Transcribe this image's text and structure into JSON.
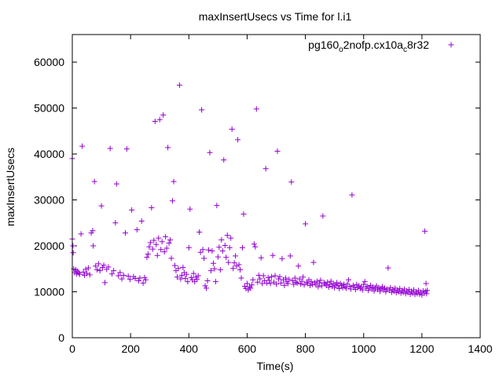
{
  "chart_data": {
    "type": "scatter",
    "title": "maxInsertUsecs vs Time for l.i1",
    "xlabel": "Time(s)",
    "ylabel": "maxInsertUsecs",
    "xlim": [
      0,
      1400
    ],
    "ylim": [
      0,
      66000
    ],
    "x_ticks": [
      0,
      200,
      400,
      600,
      800,
      1000,
      1200,
      1400
    ],
    "y_ticks": [
      0,
      10000,
      20000,
      30000,
      40000,
      50000,
      60000
    ],
    "grid": false,
    "legend_position": "top-right",
    "marker": "plus",
    "series": [
      {
        "name": "pg160_o2nofp.cx10a_c8r32",
        "legend_parts": [
          {
            "text": "pg160",
            "shift": "none"
          },
          {
            "text": "o",
            "shift": "sub"
          },
          {
            "text": "2nofp.cx10a",
            "shift": "none"
          },
          {
            "text": "c",
            "shift": "sub"
          },
          {
            "text": "8r32",
            "shift": "none"
          }
        ],
        "color": "#9400d3",
        "points": [
          [
            0,
            21500
          ],
          [
            0,
            39000
          ],
          [
            2,
            20000
          ],
          [
            3,
            18500
          ],
          [
            5,
            15000
          ],
          [
            8,
            14200
          ],
          [
            12,
            14800
          ],
          [
            15,
            13900
          ],
          [
            18,
            14500
          ],
          [
            22,
            14100
          ],
          [
            25,
            13800
          ],
          [
            30,
            22600
          ],
          [
            34,
            41700
          ],
          [
            38,
            14300
          ],
          [
            42,
            13600
          ],
          [
            46,
            14900
          ],
          [
            50,
            14000
          ],
          [
            55,
            15200
          ],
          [
            60,
            13700
          ],
          [
            65,
            22800
          ],
          [
            70,
            23300
          ],
          [
            72,
            20000
          ],
          [
            76,
            34000
          ],
          [
            80,
            15600
          ],
          [
            85,
            14800
          ],
          [
            90,
            16100
          ],
          [
            95,
            14600
          ],
          [
            100,
            28700
          ],
          [
            104,
            15300
          ],
          [
            108,
            15800
          ],
          [
            112,
            12000
          ],
          [
            118,
            14900
          ],
          [
            124,
            15400
          ],
          [
            130,
            41200
          ],
          [
            136,
            13900
          ],
          [
            142,
            14600
          ],
          [
            148,
            25000
          ],
          [
            152,
            33500
          ],
          [
            158,
            13500
          ],
          [
            164,
            14200
          ],
          [
            170,
            12800
          ],
          [
            176,
            13600
          ],
          [
            182,
            22800
          ],
          [
            187,
            41100
          ],
          [
            192,
            13400
          ],
          [
            198,
            12700
          ],
          [
            204,
            27800
          ],
          [
            210,
            13300
          ],
          [
            216,
            12900
          ],
          [
            222,
            23500
          ],
          [
            228,
            12400
          ],
          [
            232,
            13000
          ],
          [
            238,
            25400
          ],
          [
            243,
            11900
          ],
          [
            248,
            13100
          ],
          [
            252,
            12600
          ],
          [
            256,
            17500
          ],
          [
            260,
            18200
          ],
          [
            264,
            19800
          ],
          [
            268,
            20700
          ],
          [
            272,
            28300
          ],
          [
            276,
            19300
          ],
          [
            280,
            21200
          ],
          [
            284,
            47100
          ],
          [
            288,
            20300
          ],
          [
            292,
            17900
          ],
          [
            296,
            21700
          ],
          [
            300,
            47500
          ],
          [
            304,
            19200
          ],
          [
            308,
            20900
          ],
          [
            312,
            48500
          ],
          [
            316,
            18700
          ],
          [
            320,
            22000
          ],
          [
            324,
            19500
          ],
          [
            328,
            41400
          ],
          [
            332,
            20600
          ],
          [
            336,
            21300
          ],
          [
            340,
            17300
          ],
          [
            344,
            29800
          ],
          [
            348,
            34000
          ],
          [
            352,
            15700
          ],
          [
            356,
            14600
          ],
          [
            360,
            13200
          ],
          [
            364,
            15100
          ],
          [
            368,
            55000
          ],
          [
            372,
            12800
          ],
          [
            376,
            13600
          ],
          [
            380,
            15300
          ],
          [
            384,
            14200
          ],
          [
            388,
            12900
          ],
          [
            392,
            13800
          ],
          [
            396,
            12200
          ],
          [
            400,
            19600
          ],
          [
            404,
            28000
          ],
          [
            408,
            13100
          ],
          [
            412,
            12600
          ],
          [
            416,
            14000
          ],
          [
            420,
            12200
          ],
          [
            424,
            13200
          ],
          [
            428,
            12700
          ],
          [
            432,
            13500
          ],
          [
            436,
            23000
          ],
          [
            440,
            18600
          ],
          [
            444,
            49600
          ],
          [
            448,
            19200
          ],
          [
            452,
            17300
          ],
          [
            456,
            11300
          ],
          [
            460,
            10800
          ],
          [
            464,
            12400
          ],
          [
            468,
            19100
          ],
          [
            472,
            40300
          ],
          [
            476,
            14600
          ],
          [
            480,
            18900
          ],
          [
            484,
            16200
          ],
          [
            488,
            15000
          ],
          [
            492,
            12200
          ],
          [
            496,
            28800
          ],
          [
            500,
            17600
          ],
          [
            504,
            19700
          ],
          [
            508,
            14800
          ],
          [
            512,
            21300
          ],
          [
            516,
            18900
          ],
          [
            520,
            38700
          ],
          [
            524,
            20100
          ],
          [
            528,
            17500
          ],
          [
            532,
            22300
          ],
          [
            536,
            16400
          ],
          [
            540,
            19600
          ],
          [
            544,
            21700
          ],
          [
            548,
            45400
          ],
          [
            552,
            15100
          ],
          [
            556,
            16300
          ],
          [
            560,
            17800
          ],
          [
            564,
            15600
          ],
          [
            568,
            43100
          ],
          [
            572,
            15900
          ],
          [
            576,
            14800
          ],
          [
            580,
            13000
          ],
          [
            584,
            19600
          ],
          [
            588,
            26900
          ],
          [
            592,
            11200
          ],
          [
            596,
            10700
          ],
          [
            600,
            11800
          ],
          [
            604,
            10400
          ],
          [
            608,
            11100
          ],
          [
            612,
            10800
          ],
          [
            616,
            11500
          ],
          [
            620,
            12600
          ],
          [
            624,
            20400
          ],
          [
            628,
            19800
          ],
          [
            632,
            49800
          ],
          [
            636,
            12100
          ],
          [
            640,
            13600
          ],
          [
            644,
            12800
          ],
          [
            648,
            17400
          ],
          [
            652,
            11800
          ],
          [
            656,
            13500
          ],
          [
            660,
            12400
          ],
          [
            664,
            36800
          ],
          [
            668,
            11900
          ],
          [
            672,
            13100
          ],
          [
            676,
            12500
          ],
          [
            680,
            11800
          ],
          [
            684,
            13300
          ],
          [
            688,
            17900
          ],
          [
            692,
            12100
          ],
          [
            696,
            13500
          ],
          [
            700,
            11700
          ],
          [
            704,
            40600
          ],
          [
            708,
            12800
          ],
          [
            712,
            13300
          ],
          [
            716,
            11900
          ],
          [
            720,
            17200
          ],
          [
            724,
            12600
          ],
          [
            728,
            11400
          ],
          [
            732,
            13000
          ],
          [
            736,
            12200
          ],
          [
            740,
            11800
          ],
          [
            744,
            12700
          ],
          [
            748,
            17800
          ],
          [
            752,
            33900
          ],
          [
            756,
            12400
          ],
          [
            760,
            11600
          ],
          [
            764,
            13000
          ],
          [
            768,
            12100
          ],
          [
            772,
            11900
          ],
          [
            776,
            15600
          ],
          [
            780,
            12800
          ],
          [
            784,
            11700
          ],
          [
            788,
            12300
          ],
          [
            792,
            13200
          ],
          [
            796,
            11500
          ],
          [
            800,
            24800
          ],
          [
            804,
            12100
          ],
          [
            808,
            11800
          ],
          [
            812,
            12600
          ],
          [
            816,
            11400
          ],
          [
            820,
            12200
          ],
          [
            824,
            11600
          ],
          [
            828,
            16400
          ],
          [
            832,
            12000
          ],
          [
            836,
            11500
          ],
          [
            840,
            12300
          ],
          [
            844,
            11100
          ],
          [
            848,
            11900
          ],
          [
            852,
            12500
          ],
          [
            856,
            11300
          ],
          [
            860,
            26500
          ],
          [
            864,
            12000
          ],
          [
            868,
            11700
          ],
          [
            872,
            11400
          ],
          [
            876,
            12100
          ],
          [
            880,
            11000
          ],
          [
            884,
            11600
          ],
          [
            888,
            12300
          ],
          [
            892,
            11200
          ],
          [
            896,
            11800
          ],
          [
            900,
            10900
          ],
          [
            904,
            11500
          ],
          [
            908,
            12000
          ],
          [
            912,
            11300
          ],
          [
            916,
            10700
          ],
          [
            920,
            11800
          ],
          [
            924,
            11400
          ],
          [
            928,
            10900
          ],
          [
            932,
            11600
          ],
          [
            936,
            11100
          ],
          [
            940,
            10800
          ],
          [
            944,
            11700
          ],
          [
            948,
            12600
          ],
          [
            952,
            11200
          ],
          [
            956,
            10600
          ],
          [
            960,
            31100
          ],
          [
            964,
            11400
          ],
          [
            968,
            11000
          ],
          [
            972,
            10500
          ],
          [
            976,
            11600
          ],
          [
            980,
            10900
          ],
          [
            984,
            11300
          ],
          [
            988,
            10700
          ],
          [
            992,
            11100
          ],
          [
            996,
            10400
          ],
          [
            1000,
            11600
          ],
          [
            1004,
            12200
          ],
          [
            1008,
            10800
          ],
          [
            1012,
            11200
          ],
          [
            1016,
            10300
          ],
          [
            1020,
            10900
          ],
          [
            1024,
            11400
          ],
          [
            1028,
            10600
          ],
          [
            1032,
            11000
          ],
          [
            1036,
            10200
          ],
          [
            1040,
            10800
          ],
          [
            1044,
            11300
          ],
          [
            1048,
            10500
          ],
          [
            1052,
            10900
          ],
          [
            1056,
            10100
          ],
          [
            1060,
            10700
          ],
          [
            1064,
            11100
          ],
          [
            1068,
            10400
          ],
          [
            1072,
            10800
          ],
          [
            1076,
            10000
          ],
          [
            1080,
            10600
          ],
          [
            1084,
            15200
          ],
          [
            1088,
            10300
          ],
          [
            1092,
            10900
          ],
          [
            1096,
            9900
          ],
          [
            1100,
            10500
          ],
          [
            1104,
            10100
          ],
          [
            1108,
            10800
          ],
          [
            1112,
            9800
          ],
          [
            1116,
            10400
          ],
          [
            1120,
            10000
          ],
          [
            1124,
            10700
          ],
          [
            1128,
            9700
          ],
          [
            1132,
            10300
          ],
          [
            1136,
            9900
          ],
          [
            1140,
            10600
          ],
          [
            1144,
            9600
          ],
          [
            1148,
            10200
          ],
          [
            1152,
            9800
          ],
          [
            1156,
            10500
          ],
          [
            1160,
            9500
          ],
          [
            1164,
            10100
          ],
          [
            1168,
            9700
          ],
          [
            1172,
            10400
          ],
          [
            1176,
            9400
          ],
          [
            1180,
            10000
          ],
          [
            1184,
            9600
          ],
          [
            1188,
            10300
          ],
          [
            1192,
            9500
          ],
          [
            1196,
            9900
          ],
          [
            1200,
            9300
          ],
          [
            1204,
            10200
          ],
          [
            1208,
            9700
          ],
          [
            1210,
            23200
          ],
          [
            1212,
            10100
          ],
          [
            1214,
            11800
          ],
          [
            1216,
            9600
          ],
          [
            1218,
            10300
          ]
        ]
      }
    ]
  }
}
